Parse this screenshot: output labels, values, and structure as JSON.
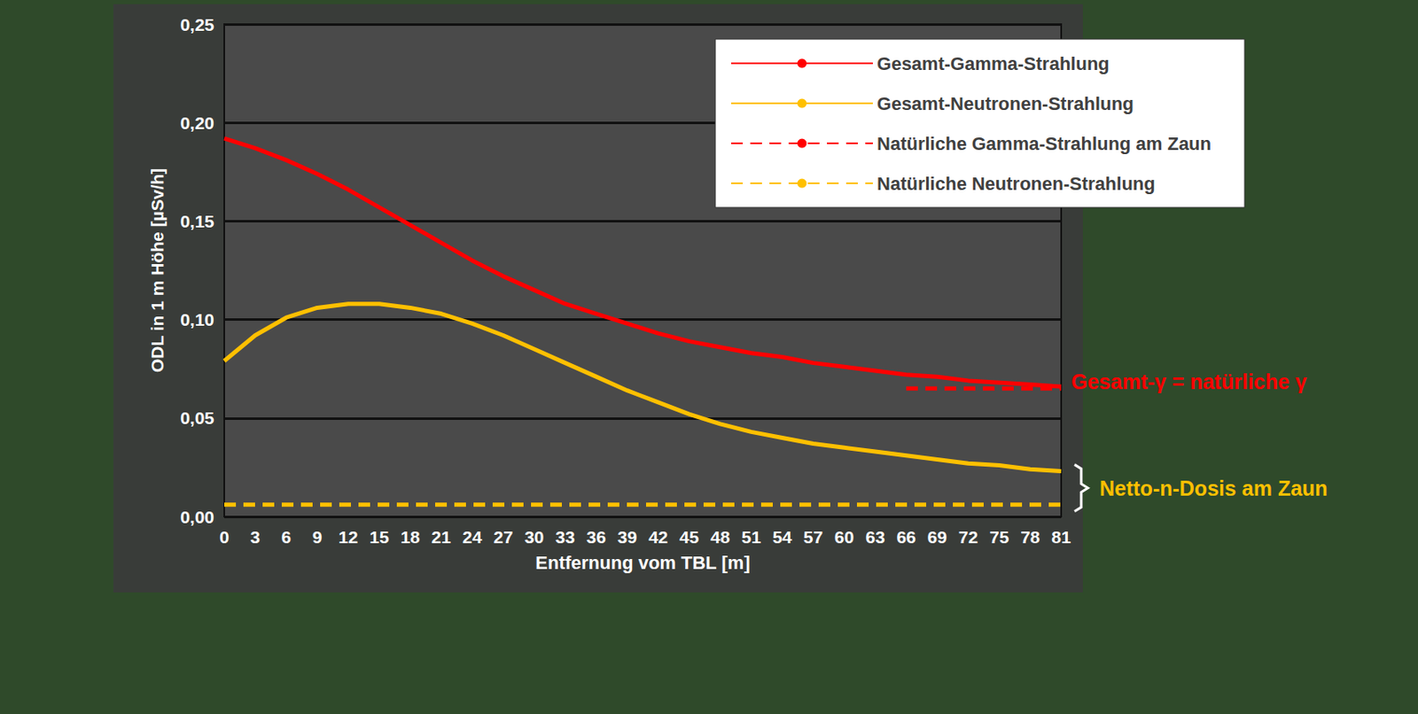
{
  "chart_data": {
    "type": "line",
    "x": [
      0,
      3,
      6,
      9,
      12,
      15,
      18,
      21,
      24,
      27,
      30,
      33,
      36,
      39,
      42,
      45,
      48,
      51,
      54,
      57,
      60,
      63,
      66,
      69,
      72,
      75,
      78,
      81
    ],
    "series": [
      {
        "name": "Gesamt-Gamma-Strahlung",
        "color": "#ff0000",
        "line_style": "solid",
        "marker": "none",
        "values": [
          0.192,
          0.187,
          0.181,
          0.174,
          0.166,
          0.157,
          0.148,
          0.139,
          0.13,
          0.122,
          0.115,
          0.108,
          0.103,
          0.098,
          0.093,
          0.089,
          0.086,
          0.083,
          0.081,
          0.078,
          0.076,
          0.074,
          0.072,
          0.071,
          0.069,
          0.068,
          0.067,
          0.066
        ]
      },
      {
        "name": "Gesamt-Neutronen-Strahlung",
        "color": "#ffc000",
        "line_style": "solid",
        "marker": "none",
        "values": [
          0.079,
          0.092,
          0.101,
          0.106,
          0.108,
          0.108,
          0.106,
          0.103,
          0.098,
          0.092,
          0.085,
          0.078,
          0.071,
          0.064,
          0.058,
          0.052,
          0.047,
          0.043,
          0.04,
          0.037,
          0.035,
          0.033,
          0.031,
          0.029,
          0.027,
          0.026,
          0.024,
          0.023
        ]
      },
      {
        "name": "Natürliche Gamma-Strahlung am Zaun",
        "color": "#ff0000",
        "line_style": "dashed",
        "marker": "none",
        "values": [
          null,
          null,
          null,
          null,
          null,
          null,
          null,
          null,
          null,
          null,
          null,
          null,
          null,
          null,
          null,
          null,
          null,
          null,
          null,
          null,
          null,
          null,
          0.065,
          0.065,
          0.065,
          0.065,
          0.065,
          0.065
        ]
      },
      {
        "name": "Natürliche Neutronen-Strahlung",
        "color": "#ffc000",
        "line_style": "dashed",
        "marker": "none",
        "values": [
          0.006,
          0.006,
          0.006,
          0.006,
          0.006,
          0.006,
          0.006,
          0.006,
          0.006,
          0.006,
          0.006,
          0.006,
          0.006,
          0.006,
          0.006,
          0.006,
          0.006,
          0.006,
          0.006,
          0.006,
          0.006,
          0.006,
          0.006,
          0.006,
          0.006,
          0.006,
          0.006,
          0.006
        ]
      }
    ],
    "xlim": [
      0,
      81
    ],
    "xticks": [
      0,
      3,
      6,
      9,
      12,
      15,
      18,
      21,
      24,
      27,
      30,
      33,
      36,
      39,
      42,
      45,
      48,
      51,
      54,
      57,
      60,
      63,
      66,
      69,
      72,
      75,
      78,
      81
    ],
    "ylim": [
      0,
      0.25
    ],
    "yticks": [
      {
        "value": 0,
        "label": "0,00"
      },
      {
        "value": 0.05,
        "label": "0,05"
      },
      {
        "value": 0.1,
        "label": "0,10"
      },
      {
        "value": 0.15,
        "label": "0,15"
      },
      {
        "value": 0.2,
        "label": "0,20"
      },
      {
        "value": 0.25,
        "label": "0,25"
      }
    ],
    "x_label": "Entfernung vom TBL [m]",
    "y_label": "ODL in 1 m Höhe [µSv/h]",
    "annotations": [
      "Gesamt-γ = natürliche γ",
      "Netto-n-Dosis am Zaun"
    ],
    "grid": true,
    "legend": "top-right"
  }
}
